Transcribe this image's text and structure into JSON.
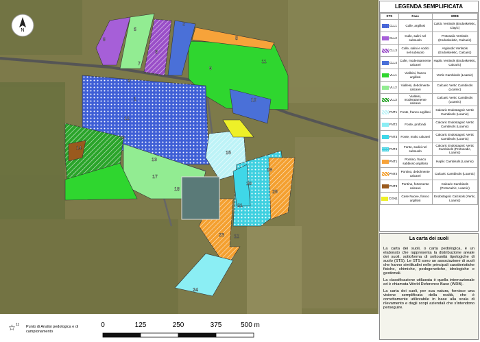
{
  "north": "N",
  "map": {
    "points": [
      "1",
      "2",
      "3",
      "4",
      "5",
      "6",
      "7",
      "8",
      "9",
      "10",
      "11",
      "12",
      "13",
      "14",
      "15",
      "16",
      "17",
      "18",
      "19",
      "20",
      "21",
      "22",
      "23",
      "24",
      "25"
    ]
  },
  "legend": {
    "title": "LEGENDA SEMPLIFICATA",
    "headers": [
      "STS",
      "Fase",
      "WRB"
    ],
    "rows": [
      {
        "code": "CLL1",
        "fase": "Culle, argillosi",
        "wrb": "Calcic Vertisols (Endoskeletic, Clayic)",
        "color": "#3f5fd6",
        "pattern": "dots"
      },
      {
        "code": "CLL2",
        "fase": "Culle, salini nel subsuolo",
        "wrb": "Protosalic Vertisols (Endoskeletic, Calcaric)",
        "color": "#a65fd8",
        "pattern": "none"
      },
      {
        "code": "CLL3",
        "fase": "Culle, salini e sodici nel subsuolo",
        "wrb": "Argisodic Vertisols (Endoskeletic, Calcaric)",
        "color": "#9a4fc8",
        "pattern": "hatch"
      },
      {
        "code": "CLL4",
        "fase": "Culle, moderatamente calcarei",
        "wrb": "Haplic Vertisols (Endoskeletic, Calcaric)",
        "color": "#4a70d8",
        "pattern": "none"
      },
      {
        "code": "VLL1",
        "fase": "Vialleisi, franco argillosi",
        "wrb": "Vertic Cambisols (Loamic)",
        "color": "#2fd62f",
        "pattern": "none"
      },
      {
        "code": "VLL2",
        "fase": "Vialleisi, debolmente calcarei",
        "wrb": "Calcaric Vertic Cambisols (Loamic)",
        "color": "#92ec92",
        "pattern": "none"
      },
      {
        "code": "VLL3",
        "fase": "Vialleisi, moderatamente calcarei",
        "wrb": "Calcaric Vertic Cambisols (Loamic)",
        "color": "#2aa42a",
        "pattern": "hatch"
      },
      {
        "code": "FNT1",
        "fase": "Fonte, franco argillosi",
        "wrb": "Calcaric Endostagnic Vertic Cambisols (Loamic)",
        "color": "#bdf3f7",
        "pattern": "hatch"
      },
      {
        "code": "FNT2",
        "fase": "Fonte, profondi",
        "wrb": "Calcaric Endostagnic Vertic Cambisols (Loamic)",
        "color": "#8beef4",
        "pattern": "none"
      },
      {
        "code": "FNT3",
        "fase": "Fonte, molto calcarei",
        "wrb": "Calcaric Endostagnic Vertic Cambisols (Loamic)",
        "color": "#3fd7e8",
        "pattern": "none"
      },
      {
        "code": "FNT4",
        "fase": "Fonte, sodici nel subsuolo",
        "wrb": "Calcaric Endostagnic Vertic Cambisols (Protosodic, Loamic)",
        "color": "#3fd0e0",
        "pattern": "dots"
      },
      {
        "code": "PNT1",
        "fase": "Pontino, franco sabbioso argilloso",
        "wrb": "Haplic Cambisols (Loamic)",
        "color": "#f7a33a",
        "pattern": "none"
      },
      {
        "code": "PNT2",
        "fase": "Pontino, debolmente calcarei",
        "wrb": "Calcaric Cambisols (Loamic)",
        "color": "#f4a030",
        "pattern": "hatch"
      },
      {
        "code": "PNT3",
        "fase": "Pontino, fortemente calcarei",
        "wrb": "Calcaric Cambisols (Protocalcic, Loamic)",
        "color": "#9a5a1e",
        "pattern": "none"
      },
      {
        "code": "CGN1",
        "fase": "Case Nuove, franco argillosi",
        "wrb": "Endostagnic Calcisols (Vertic, Loamic)",
        "color": "#eef028",
        "pattern": "none"
      }
    ]
  },
  "info": {
    "title": "La carta dei suoli",
    "paragraphs": [
      "La carta dei suoli, o carta pedologica, è un elaborato che rappresenta la distribuzione areale dei suoli, sottoforma di sottounità tipologiche di suolo (STS). Le STS sono un associazione di suoli che hanno similitudini nelle principali caratteristiche fisiche, chimiche, pedogenetiche, idrologiche e gestionali.",
      "La classificazione utilizzata è quella internazionale ed è chiamata World Reference Base (WRB).",
      "La carta dei suoli, per sua natura, fornisce una visione semplificata della realtà, che è correttamente utilizzabile in base alla scala di rilevamento e dagli scopi aziendali che s'intendono perseguire."
    ]
  },
  "footer": {
    "marker": "11",
    "note": "Punto di Analisi pedologica e di campionamento",
    "scale": [
      "0",
      "125",
      "250",
      "375",
      "500 m"
    ]
  }
}
